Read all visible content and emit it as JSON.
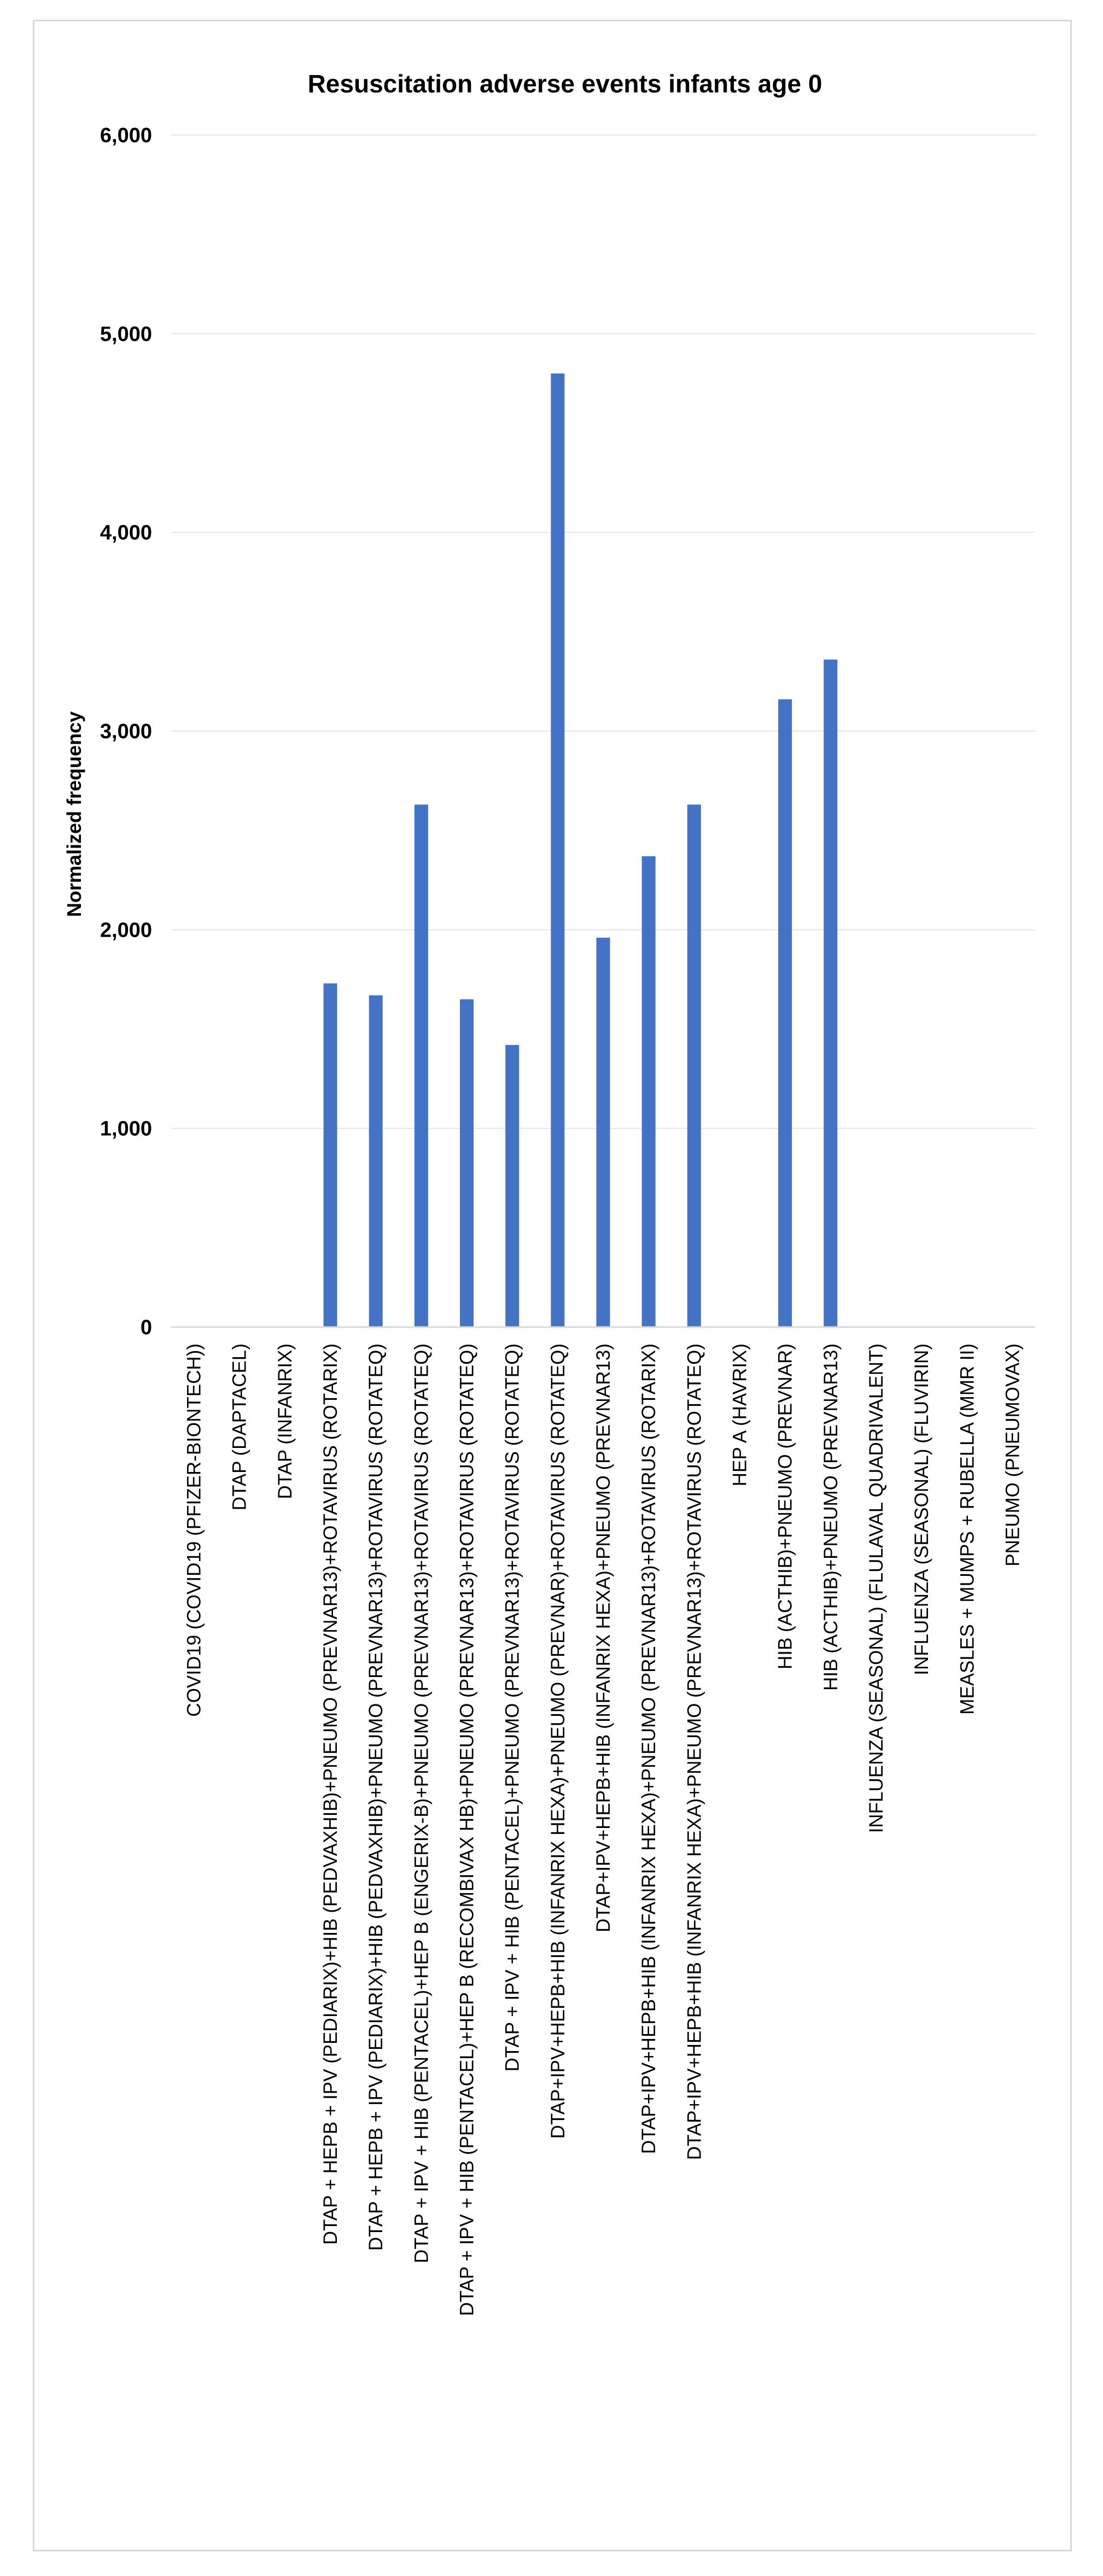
{
  "chart_data": {
    "type": "bar",
    "title": "Resuscitation adverse events infants age 0",
    "xlabel": "",
    "ylabel": "Normalized frequency",
    "ylim": [
      0,
      6000
    ],
    "yticks": [
      "0",
      "1,000",
      "2,000",
      "3,000",
      "4,000",
      "5,000",
      "6,000"
    ],
    "ytick_values": [
      0,
      1000,
      2000,
      3000,
      4000,
      5000,
      6000
    ],
    "grid": true,
    "legend": "none",
    "bar_color": "#4472c4",
    "categories": [
      "COVID19 (COVID19 (PFIZER-BIONTECH))",
      "DTAP (DAPTACEL)",
      "DTAP (INFANRIX)",
      "DTAP + HEPB + IPV (PEDIARIX)+HIB (PEDVAXHIB)+PNEUMO (PREVNAR13)+ROTAVIRUS (ROTARIX)",
      "DTAP + HEPB + IPV (PEDIARIX)+HIB (PEDVAXHIB)+PNEUMO (PREVNAR13)+ROTAVIRUS (ROTATEQ)",
      "DTAP + IPV + HIB (PENTACEL)+HEP B (ENGERIX-B)+PNEUMO (PREVNAR13)+ROTAVIRUS (ROTATEQ)",
      "DTAP + IPV + HIB (PENTACEL)+HEP B (RECOMBIVAX HB)+PNEUMO (PREVNAR13)+ROTAVIRUS (ROTATEQ)",
      "DTAP + IPV + HIB (PENTACEL)+PNEUMO (PREVNAR13)+ROTAVIRUS (ROTATEQ)",
      "DTAP+IPV+HEPB+HIB (INFANRIX HEXA)+PNEUMO (PREVNAR)+ROTAVIRUS (ROTATEQ)",
      "DTAP+IPV+HEPB+HIB (INFANRIX HEXA)+PNEUMO (PREVNAR13)",
      "DTAP+IPV+HEPB+HIB (INFANRIX HEXA)+PNEUMO (PREVNAR13)+ROTAVIRUS (ROTARIX)",
      "DTAP+IPV+HEPB+HIB (INFANRIX HEXA)+PNEUMO (PREVNAR13)+ROTAVIRUS (ROTATEQ)",
      "HEP A (HAVRIX)",
      "HIB (ACTHIB)+PNEUMO (PREVNAR)",
      "HIB (ACTHIB)+PNEUMO (PREVNAR13)",
      "INFLUENZA (SEASONAL) (FLULAVAL QUADRIVALENT)",
      "INFLUENZA (SEASONAL) (FLUVIRIN)",
      "MEASLES + MUMPS + RUBELLA (MMR II)",
      "PNEUMO (PNEUMOVAX)"
    ],
    "values": [
      0,
      0,
      0,
      1730,
      1670,
      2630,
      1650,
      1420,
      4800,
      1960,
      2370,
      2630,
      0,
      3160,
      3360,
      0,
      0,
      0,
      0
    ]
  }
}
